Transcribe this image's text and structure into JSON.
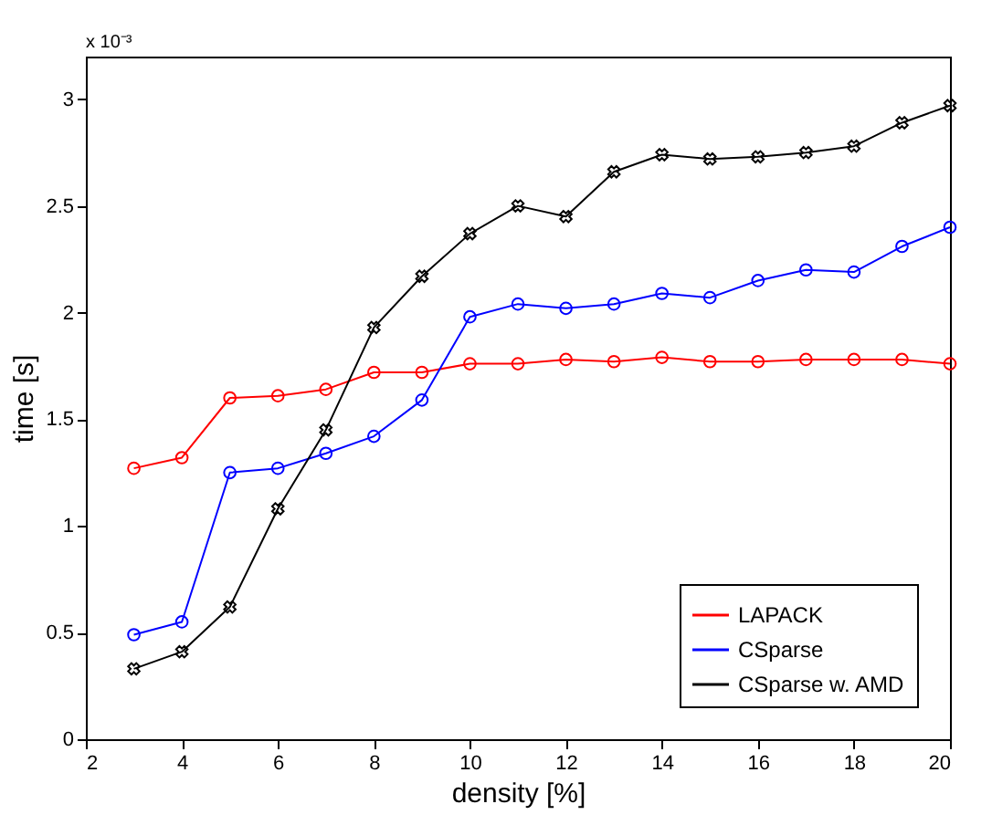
{
  "chart_data": {
    "type": "line",
    "xlabel": "density [%]",
    "ylabel": "time [s]",
    "annotations": [
      "x 10⁻³"
    ],
    "x": [
      3,
      4,
      5,
      6,
      7,
      8,
      9,
      10,
      11,
      12,
      13,
      14,
      15,
      16,
      17,
      18,
      19,
      20
    ],
    "series": [
      {
        "name": "LAPACK",
        "color": "#ff0000",
        "marker": "circle",
        "values": [
          1.27,
          1.32,
          1.6,
          1.61,
          1.64,
          1.72,
          1.72,
          1.76,
          1.76,
          1.78,
          1.77,
          1.79,
          1.77,
          1.77,
          1.78,
          1.78,
          1.78,
          1.76
        ]
      },
      {
        "name": "CSparse",
        "color": "#0000ff",
        "marker": "circle",
        "values": [
          0.49,
          0.55,
          1.25,
          1.27,
          1.34,
          1.42,
          1.59,
          1.98,
          2.04,
          2.02,
          2.04,
          2.09,
          2.07,
          2.15,
          2.2,
          2.19,
          2.31,
          2.4
        ]
      },
      {
        "name": "CSparse w. AMD",
        "color": "#000000",
        "marker": "cross",
        "values": [
          0.33,
          0.41,
          0.62,
          1.08,
          1.45,
          1.93,
          2.17,
          2.37,
          2.5,
          2.45,
          2.66,
          2.74,
          2.72,
          2.73,
          2.75,
          2.78,
          2.89,
          2.97
        ]
      }
    ],
    "xlim": [
      2,
      20
    ],
    "xticks": [
      2,
      4,
      6,
      8,
      10,
      12,
      14,
      16,
      18,
      20
    ],
    "ylim": [
      0,
      3.2
    ],
    "yticks": [
      0,
      0.5,
      1,
      1.5,
      2,
      2.5,
      3
    ],
    "grid": false,
    "legend": "bottom right",
    "line_style": "solid"
  }
}
